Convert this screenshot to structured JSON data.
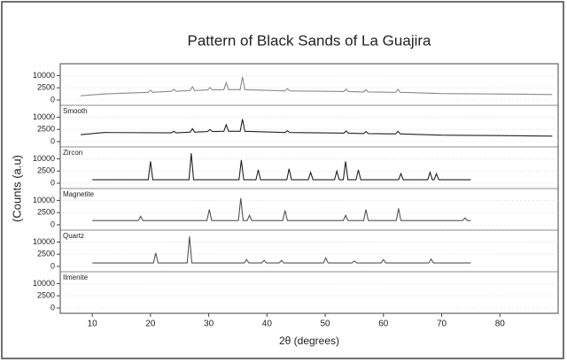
{
  "chart_data": {
    "type": "stacked-line",
    "title": "Pattern of Black Sands of La Guajira",
    "xlabel": "2θ (degrees)",
    "ylabel": "(Counts (a.u)",
    "xlim": [
      4.5,
      90
    ],
    "xticks": [
      10,
      20,
      30,
      40,
      50,
      60,
      70,
      80
    ],
    "yscale": "sqrt",
    "panels": [
      {
        "label": null,
        "color": "#8a8a8a",
        "ylim": [
          0,
          20000
        ],
        "yticks": [
          0,
          2500,
          10000
        ],
        "x": [
          8,
          12,
          19.6,
          20,
          20.4,
          23.6,
          24,
          24.4,
          26.8,
          27.2,
          27.6,
          29.8,
          30.2,
          30.6,
          32.6,
          33,
          33.4,
          35.4,
          35.8,
          36.2,
          43.1,
          43.5,
          43.9,
          53.2,
          53.6,
          54,
          56.6,
          57,
          57.4,
          62.1,
          62.5,
          62.9,
          70,
          80,
          89
        ],
        "values": [
          300,
          600,
          1000,
          1600,
          1000,
          1300,
          1900,
          1300,
          1500,
          3000,
          1500,
          1700,
          2600,
          1700,
          1800,
          5000,
          1800,
          1800,
          9000,
          1800,
          1400,
          2200,
          1400,
          1200,
          2000,
          1200,
          1100,
          1800,
          1100,
          1000,
          1900,
          1000,
          700,
          600,
          500
        ]
      },
      {
        "label": "Smooth",
        "color": "#222222",
        "ylim": [
          0,
          20000
        ],
        "yticks": [
          0,
          2500,
          10000
        ],
        "x": [
          8,
          12,
          23.6,
          24,
          24.4,
          26.8,
          27.2,
          27.6,
          29.8,
          30.2,
          30.6,
          32.6,
          33,
          33.4,
          35.4,
          35.8,
          36.2,
          43.1,
          43.5,
          43.9,
          53.2,
          53.6,
          54,
          56.6,
          57,
          57.4,
          62.1,
          62.5,
          62.9,
          70,
          80,
          89
        ],
        "values": [
          800,
          1400,
          1300,
          1800,
          1300,
          1500,
          2800,
          1500,
          1700,
          2500,
          1700,
          1800,
          4800,
          1800,
          1800,
          8500,
          1800,
          1400,
          2000,
          1400,
          1200,
          1900,
          1200,
          1100,
          1700,
          1100,
          1000,
          1800,
          1000,
          700,
          600,
          500
        ]
      },
      {
        "label": "Zircon",
        "color": "#222222",
        "ylim": [
          0,
          20000
        ],
        "yticks": [
          0,
          2500,
          10000
        ],
        "x": [
          10,
          19.6,
          20,
          20.4,
          26.6,
          27,
          27.4,
          35.2,
          35.6,
          36,
          38.1,
          38.5,
          38.9,
          43.4,
          43.8,
          44.2,
          47.1,
          47.5,
          47.9,
          51.6,
          52,
          52.4,
          53.1,
          53.5,
          53.9,
          55.3,
          55.7,
          56.1,
          62.6,
          63,
          63.4,
          67.6,
          68,
          68.4,
          68.7,
          69.1,
          69.5,
          75
        ],
        "values": [
          200,
          200,
          8000,
          200,
          200,
          15000,
          200,
          200,
          9000,
          200,
          200,
          3000,
          200,
          200,
          3500,
          200,
          200,
          2000,
          200,
          200,
          2500,
          200,
          200,
          8000,
          200,
          200,
          3000,
          200,
          200,
          1500,
          200,
          200,
          2000,
          200,
          200,
          1500,
          200,
          200
        ]
      },
      {
        "label": "Magnetite",
        "color": "#555555",
        "ylim": [
          0,
          20000
        ],
        "yticks": [
          0,
          2500,
          10000
        ],
        "x": [
          10,
          17.9,
          18.3,
          18.7,
          29.7,
          30.1,
          30.5,
          35.1,
          35.5,
          35.9,
          36.6,
          37,
          37.4,
          42.7,
          43.1,
          43.5,
          53.1,
          53.5,
          53.9,
          56.6,
          57,
          57.4,
          62.2,
          62.6,
          63,
          73.6,
          74,
          74.4,
          75
        ],
        "values": [
          300,
          300,
          1200,
          300,
          300,
          4000,
          300,
          300,
          12000,
          300,
          300,
          1500,
          300,
          300,
          3500,
          300,
          300,
          1500,
          300,
          300,
          4000,
          300,
          300,
          4500,
          300,
          300,
          800,
          300,
          300
        ]
      },
      {
        "label": "Quartz",
        "color": "#555555",
        "ylim": [
          0,
          20000
        ],
        "yticks": [
          0,
          2500,
          10000
        ],
        "x": [
          10,
          20.5,
          20.9,
          21.3,
          26.3,
          26.7,
          27.1,
          36.1,
          36.5,
          36.9,
          39.1,
          39.5,
          39.9,
          42.1,
          42.5,
          42.9,
          49.7,
          50.1,
          50.5,
          54.6,
          55,
          55.4,
          59.6,
          60,
          60.4,
          67.8,
          68.2,
          68.6,
          75
        ],
        "values": [
          200,
          200,
          3000,
          200,
          200,
          15000,
          200,
          200,
          800,
          200,
          200,
          600,
          200,
          200,
          600,
          200,
          200,
          1200,
          200,
          200,
          500,
          200,
          200,
          800,
          200,
          200,
          900,
          200,
          200
        ]
      },
      {
        "label": "Ilmenite",
        "color": "#555555",
        "ylim": [
          0,
          20000
        ],
        "yticks": [
          0,
          2500,
          10000
        ],
        "x": [],
        "values": []
      }
    ]
  }
}
